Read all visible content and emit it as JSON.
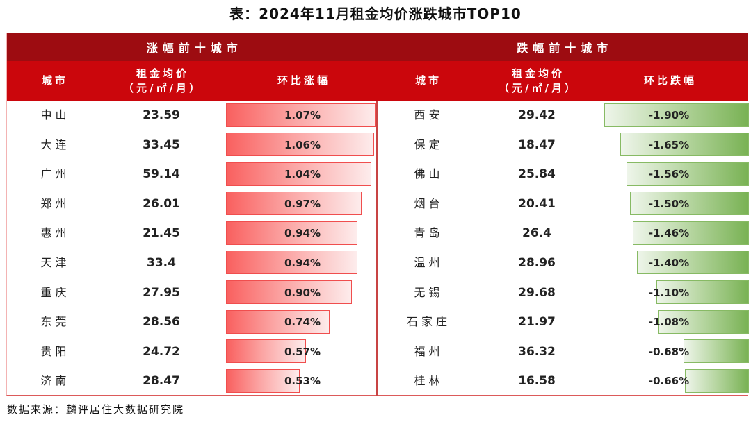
{
  "title": "表：2024年11月租金均价涨跌城市TOP10",
  "footer": {
    "source": "数据来源：麟评居住大数据研究院"
  },
  "colors": {
    "group_header_bg": "#9d0c11",
    "column_header_bg": "#cb060c",
    "gain_bar_start": "#f9605f",
    "gain_bar_end": "#fdecec",
    "gain_bar_border": "#f04e4e",
    "loss_bar_start": "#eef5ea",
    "loss_bar_end": "#79b254",
    "loss_bar_border": "#87ba64",
    "divider": "#c84444",
    "table_bottom_border": "#dc5a5a"
  },
  "gainers": {
    "header": "涨幅前十城市",
    "col_city": "城市",
    "col_rent_line1": "租金均价",
    "col_rent_line2": "（元/㎡/月）",
    "col_change": "环比涨幅",
    "rows": [
      {
        "city": "中山",
        "rent": "23.59",
        "change": "1.07%",
        "value": 1.07
      },
      {
        "city": "大连",
        "rent": "33.45",
        "change": "1.06%",
        "value": 1.06
      },
      {
        "city": "广州",
        "rent": "59.14",
        "change": "1.04%",
        "value": 1.04
      },
      {
        "city": "郑州",
        "rent": "26.01",
        "change": "0.97%",
        "value": 0.97
      },
      {
        "city": "惠州",
        "rent": "21.45",
        "change": "0.94%",
        "value": 0.94
      },
      {
        "city": "天津",
        "rent": "33.4",
        "change": "0.94%",
        "value": 0.94
      },
      {
        "city": "重庆",
        "rent": "27.95",
        "change": "0.90%",
        "value": 0.9
      },
      {
        "city": "东莞",
        "rent": "28.56",
        "change": "0.74%",
        "value": 0.74
      },
      {
        "city": "贵阳",
        "rent": "24.72",
        "change": "0.57%",
        "value": 0.57
      },
      {
        "city": "济南",
        "rent": "28.47",
        "change": "0.53%",
        "value": 0.53
      }
    ]
  },
  "losers": {
    "header": "跌幅前十城市",
    "col_city": "城市",
    "col_rent_line1": "租金均价",
    "col_rent_line2": "（元/㎡/月）",
    "col_change": "环比跌幅",
    "rows": [
      {
        "city": "西安",
        "rent": "29.42",
        "change": "-1.90%",
        "value": 1.9
      },
      {
        "city": "保定",
        "rent": "18.47",
        "change": "-1.65%",
        "value": 1.65
      },
      {
        "city": "佛山",
        "rent": "25.84",
        "change": "-1.56%",
        "value": 1.56
      },
      {
        "city": "烟台",
        "rent": "20.41",
        "change": "-1.50%",
        "value": 1.5
      },
      {
        "city": "青岛",
        "rent": "26.4",
        "change": "-1.46%",
        "value": 1.46
      },
      {
        "city": "温州",
        "rent": "28.96",
        "change": "-1.40%",
        "value": 1.4
      },
      {
        "city": "无锡",
        "rent": "29.68",
        "change": "-1.10%",
        "value": 1.1
      },
      {
        "city": "石家庄",
        "rent": "21.97",
        "change": "-1.08%",
        "value": 1.08
      },
      {
        "city": "福州",
        "rent": "36.32",
        "change": "-0.68%",
        "value": 0.68
      },
      {
        "city": "桂林",
        "rent": "16.58",
        "change": "-0.66%",
        "value": 0.66
      }
    ]
  },
  "chart_data": {
    "type": "table",
    "title": "表：2024年11月租金均价涨跌城市TOP10",
    "tables": [
      {
        "group": "涨幅前十城市",
        "columns": [
          "城市",
          "租金均价（元/㎡/月）",
          "环比涨幅"
        ],
        "bar_style": "red-gradient-left-anchored",
        "rows": [
          [
            "中山",
            23.59,
            "1.07%"
          ],
          [
            "大连",
            33.45,
            "1.06%"
          ],
          [
            "广州",
            59.14,
            "1.04%"
          ],
          [
            "郑州",
            26.01,
            "0.97%"
          ],
          [
            "惠州",
            21.45,
            "0.94%"
          ],
          [
            "天津",
            33.4,
            "0.94%"
          ],
          [
            "重庆",
            27.95,
            "0.90%"
          ],
          [
            "东莞",
            28.56,
            "0.74%"
          ],
          [
            "贵阳",
            24.72,
            "0.57%"
          ],
          [
            "济南",
            28.47,
            "0.53%"
          ]
        ]
      },
      {
        "group": "跌幅前十城市",
        "columns": [
          "城市",
          "租金均价（元/㎡/月）",
          "环比跌幅"
        ],
        "bar_style": "green-gradient-right-anchored",
        "rows": [
          [
            "西安",
            29.42,
            "-1.90%"
          ],
          [
            "保定",
            18.47,
            "-1.65%"
          ],
          [
            "佛山",
            25.84,
            "-1.56%"
          ],
          [
            "烟台",
            20.41,
            "-1.50%"
          ],
          [
            "青岛",
            26.4,
            "-1.46%"
          ],
          [
            "温州",
            28.96,
            "-1.40%"
          ],
          [
            "无锡",
            29.68,
            "-1.10%"
          ],
          [
            "石家庄",
            21.97,
            "-1.08%"
          ],
          [
            "福州",
            36.32,
            "-0.68%"
          ],
          [
            "桂林",
            16.58,
            "-0.66%"
          ]
        ]
      }
    ],
    "source": "数据来源：麟评居住大数据研究院"
  }
}
